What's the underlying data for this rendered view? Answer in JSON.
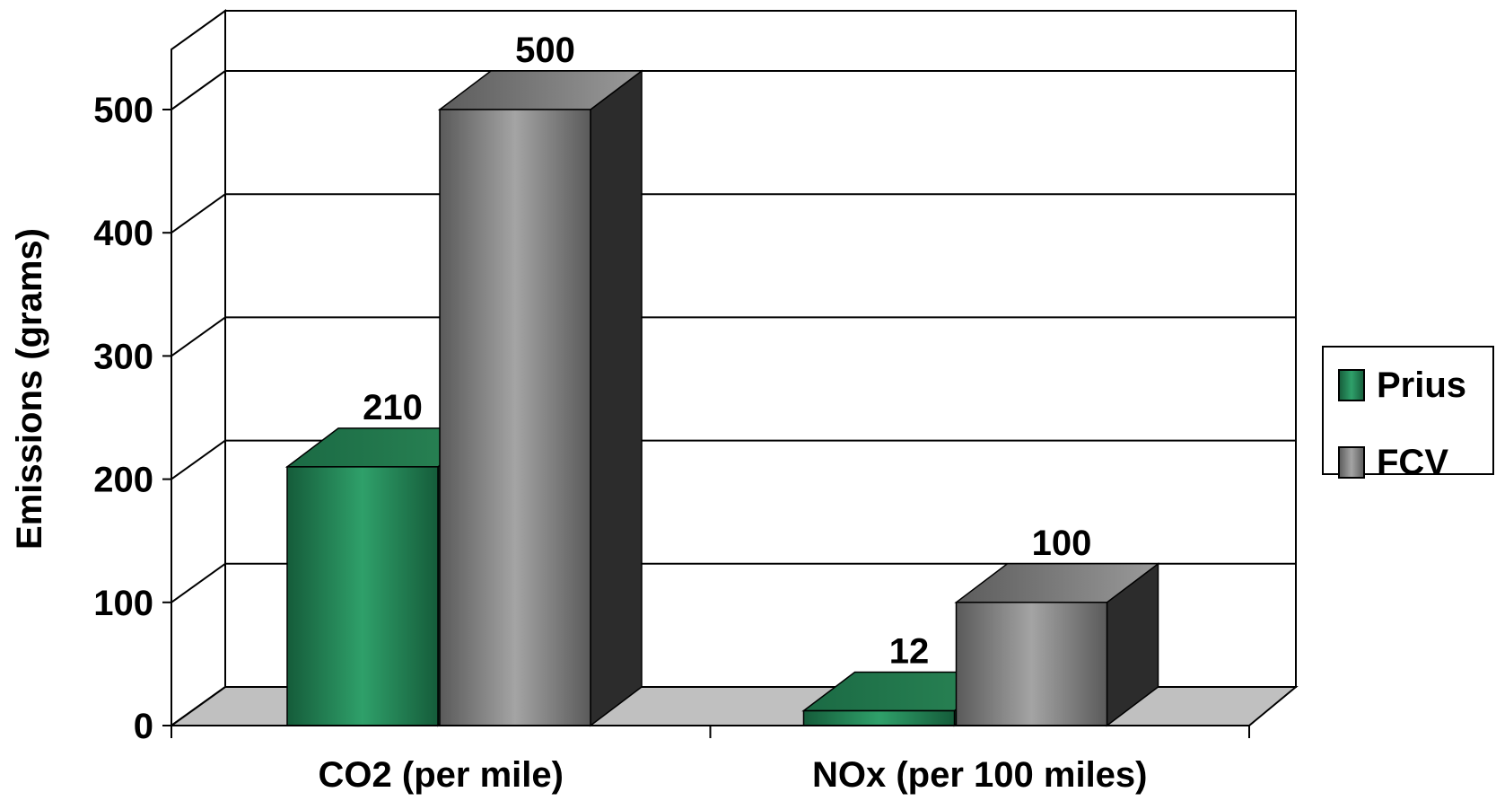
{
  "chart_data": {
    "type": "bar",
    "style": "3d-clustered-column",
    "categories": [
      "CO2 (per mile)",
      "NOx (per 100 miles)"
    ],
    "series": [
      {
        "name": "Prius",
        "values": [
          210,
          12
        ],
        "color": "#2a9a62"
      },
      {
        "name": "FCV",
        "values": [
          500,
          100
        ],
        "color": "#8e8e8e"
      }
    ],
    "value_labels": [
      [
        "210",
        "12"
      ],
      [
        "500",
        "100"
      ]
    ],
    "title": "",
    "xlabel": "",
    "ylabel": "Emissions (grams)",
    "ylim": [
      0,
      500
    ],
    "yticks": [
      "0",
      "100",
      "200",
      "300",
      "400",
      "500"
    ],
    "grid": true,
    "legend": "right",
    "floor_color": "#c0c0c0"
  }
}
